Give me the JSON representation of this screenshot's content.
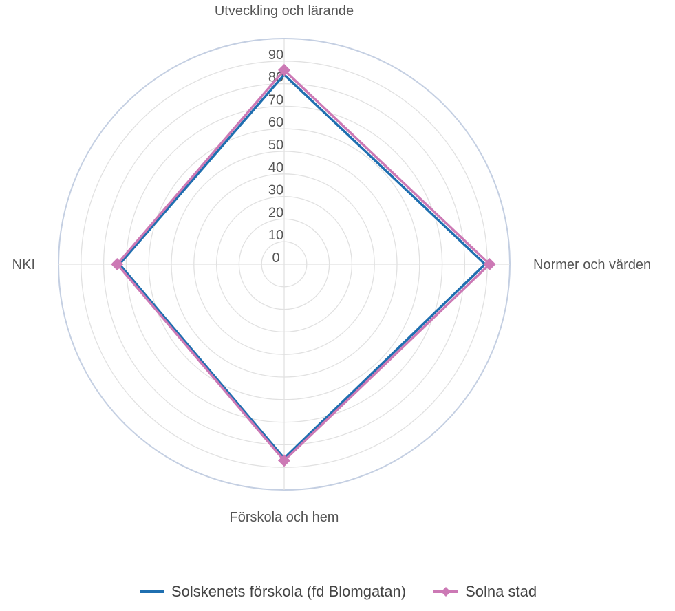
{
  "chart_data": {
    "type": "radar",
    "axes": [
      "Utveckling och lärande",
      "Normer och värden",
      "Förskola och hem",
      "NKI"
    ],
    "ticks": [
      "0",
      "10",
      "20",
      "30",
      "40",
      "50",
      "60",
      "70",
      "80",
      "90"
    ],
    "rmin": 0,
    "rmax": 100,
    "grid": true,
    "legend_position": "bottom",
    "series": [
      {
        "name": "Solskenets förskola (fd Blomgatan)",
        "values": [
          84,
          89,
          86,
          73
        ],
        "color": "#1f6fb0",
        "marker": "none"
      },
      {
        "name": "Solna stad",
        "values": [
          86,
          91,
          87,
          74
        ],
        "color": "#cc79b5",
        "marker": "diamond"
      }
    ]
  }
}
